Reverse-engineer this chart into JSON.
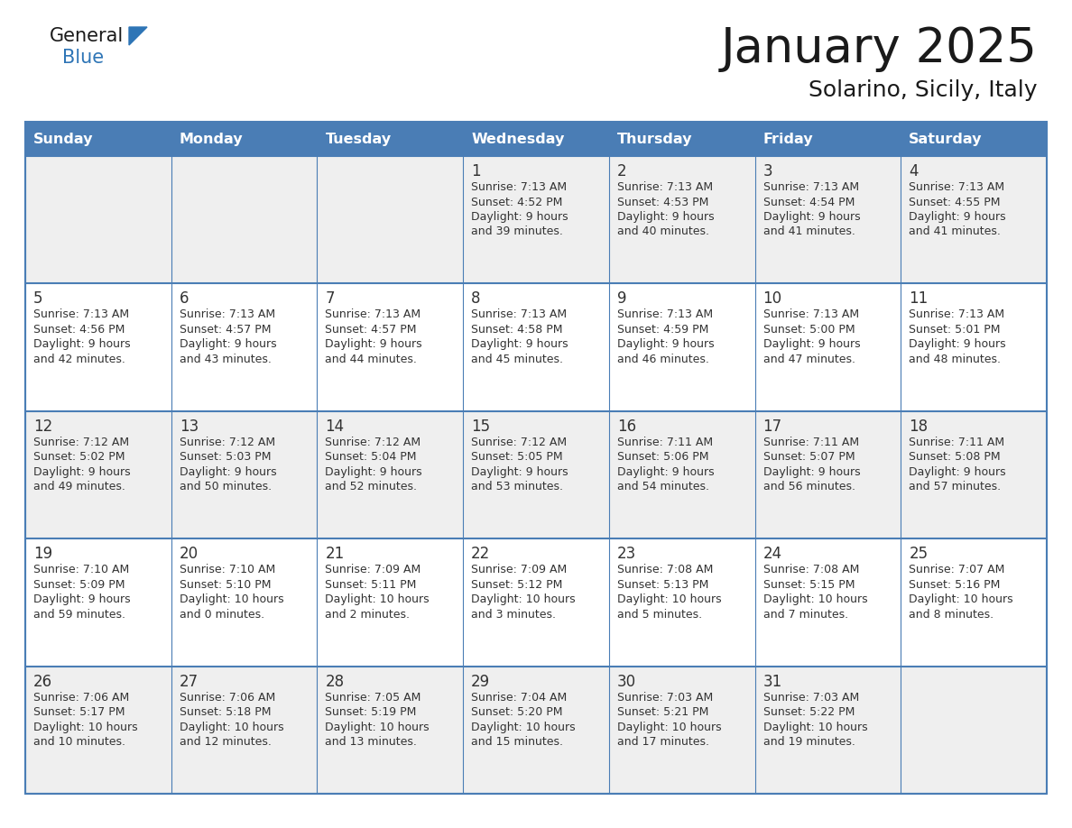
{
  "title": "January 2025",
  "subtitle": "Solarino, Sicily, Italy",
  "days_of_week": [
    "Sunday",
    "Monday",
    "Tuesday",
    "Wednesday",
    "Thursday",
    "Friday",
    "Saturday"
  ],
  "header_bg": "#4A7DB5",
  "header_text": "#FFFFFF",
  "cell_bg_odd": "#EFEFEF",
  "cell_bg_even": "#FFFFFF",
  "border_color": "#4A7DB5",
  "text_color": "#333333",
  "logo_black": "#1a1a1a",
  "logo_blue": "#2E75B6",
  "calendar_data": [
    [
      {
        "day": "",
        "sunrise": "",
        "sunset": "",
        "daylight_h": "",
        "daylight_m": ""
      },
      {
        "day": "",
        "sunrise": "",
        "sunset": "",
        "daylight_h": "",
        "daylight_m": ""
      },
      {
        "day": "",
        "sunrise": "",
        "sunset": "",
        "daylight_h": "",
        "daylight_m": ""
      },
      {
        "day": "1",
        "sunrise": "7:13 AM",
        "sunset": "4:52 PM",
        "daylight_h": "9 hours",
        "daylight_m": "and 39 minutes."
      },
      {
        "day": "2",
        "sunrise": "7:13 AM",
        "sunset": "4:53 PM",
        "daylight_h": "9 hours",
        "daylight_m": "and 40 minutes."
      },
      {
        "day": "3",
        "sunrise": "7:13 AM",
        "sunset": "4:54 PM",
        "daylight_h": "9 hours",
        "daylight_m": "and 41 minutes."
      },
      {
        "day": "4",
        "sunrise": "7:13 AM",
        "sunset": "4:55 PM",
        "daylight_h": "9 hours",
        "daylight_m": "and 41 minutes."
      }
    ],
    [
      {
        "day": "5",
        "sunrise": "7:13 AM",
        "sunset": "4:56 PM",
        "daylight_h": "9 hours",
        "daylight_m": "and 42 minutes."
      },
      {
        "day": "6",
        "sunrise": "7:13 AM",
        "sunset": "4:57 PM",
        "daylight_h": "9 hours",
        "daylight_m": "and 43 minutes."
      },
      {
        "day": "7",
        "sunrise": "7:13 AM",
        "sunset": "4:57 PM",
        "daylight_h": "9 hours",
        "daylight_m": "and 44 minutes."
      },
      {
        "day": "8",
        "sunrise": "7:13 AM",
        "sunset": "4:58 PM",
        "daylight_h": "9 hours",
        "daylight_m": "and 45 minutes."
      },
      {
        "day": "9",
        "sunrise": "7:13 AM",
        "sunset": "4:59 PM",
        "daylight_h": "9 hours",
        "daylight_m": "and 46 minutes."
      },
      {
        "day": "10",
        "sunrise": "7:13 AM",
        "sunset": "5:00 PM",
        "daylight_h": "9 hours",
        "daylight_m": "and 47 minutes."
      },
      {
        "day": "11",
        "sunrise": "7:13 AM",
        "sunset": "5:01 PM",
        "daylight_h": "9 hours",
        "daylight_m": "and 48 minutes."
      }
    ],
    [
      {
        "day": "12",
        "sunrise": "7:12 AM",
        "sunset": "5:02 PM",
        "daylight_h": "9 hours",
        "daylight_m": "and 49 minutes."
      },
      {
        "day": "13",
        "sunrise": "7:12 AM",
        "sunset": "5:03 PM",
        "daylight_h": "9 hours",
        "daylight_m": "and 50 minutes."
      },
      {
        "day": "14",
        "sunrise": "7:12 AM",
        "sunset": "5:04 PM",
        "daylight_h": "9 hours",
        "daylight_m": "and 52 minutes."
      },
      {
        "day": "15",
        "sunrise": "7:12 AM",
        "sunset": "5:05 PM",
        "daylight_h": "9 hours",
        "daylight_m": "and 53 minutes."
      },
      {
        "day": "16",
        "sunrise": "7:11 AM",
        "sunset": "5:06 PM",
        "daylight_h": "9 hours",
        "daylight_m": "and 54 minutes."
      },
      {
        "day": "17",
        "sunrise": "7:11 AM",
        "sunset": "5:07 PM",
        "daylight_h": "9 hours",
        "daylight_m": "and 56 minutes."
      },
      {
        "day": "18",
        "sunrise": "7:11 AM",
        "sunset": "5:08 PM",
        "daylight_h": "9 hours",
        "daylight_m": "and 57 minutes."
      }
    ],
    [
      {
        "day": "19",
        "sunrise": "7:10 AM",
        "sunset": "5:09 PM",
        "daylight_h": "9 hours",
        "daylight_m": "and 59 minutes."
      },
      {
        "day": "20",
        "sunrise": "7:10 AM",
        "sunset": "5:10 PM",
        "daylight_h": "10 hours",
        "daylight_m": "and 0 minutes."
      },
      {
        "day": "21",
        "sunrise": "7:09 AM",
        "sunset": "5:11 PM",
        "daylight_h": "10 hours",
        "daylight_m": "and 2 minutes."
      },
      {
        "day": "22",
        "sunrise": "7:09 AM",
        "sunset": "5:12 PM",
        "daylight_h": "10 hours",
        "daylight_m": "and 3 minutes."
      },
      {
        "day": "23",
        "sunrise": "7:08 AM",
        "sunset": "5:13 PM",
        "daylight_h": "10 hours",
        "daylight_m": "and 5 minutes."
      },
      {
        "day": "24",
        "sunrise": "7:08 AM",
        "sunset": "5:15 PM",
        "daylight_h": "10 hours",
        "daylight_m": "and 7 minutes."
      },
      {
        "day": "25",
        "sunrise": "7:07 AM",
        "sunset": "5:16 PM",
        "daylight_h": "10 hours",
        "daylight_m": "and 8 minutes."
      }
    ],
    [
      {
        "day": "26",
        "sunrise": "7:06 AM",
        "sunset": "5:17 PM",
        "daylight_h": "10 hours",
        "daylight_m": "and 10 minutes."
      },
      {
        "day": "27",
        "sunrise": "7:06 AM",
        "sunset": "5:18 PM",
        "daylight_h": "10 hours",
        "daylight_m": "and 12 minutes."
      },
      {
        "day": "28",
        "sunrise": "7:05 AM",
        "sunset": "5:19 PM",
        "daylight_h": "10 hours",
        "daylight_m": "and 13 minutes."
      },
      {
        "day": "29",
        "sunrise": "7:04 AM",
        "sunset": "5:20 PM",
        "daylight_h": "10 hours",
        "daylight_m": "and 15 minutes."
      },
      {
        "day": "30",
        "sunrise": "7:03 AM",
        "sunset": "5:21 PM",
        "daylight_h": "10 hours",
        "daylight_m": "and 17 minutes."
      },
      {
        "day": "31",
        "sunrise": "7:03 AM",
        "sunset": "5:22 PM",
        "daylight_h": "10 hours",
        "daylight_m": "and 19 minutes."
      },
      {
        "day": "",
        "sunrise": "",
        "sunset": "",
        "daylight_h": "",
        "daylight_m": ""
      }
    ]
  ]
}
